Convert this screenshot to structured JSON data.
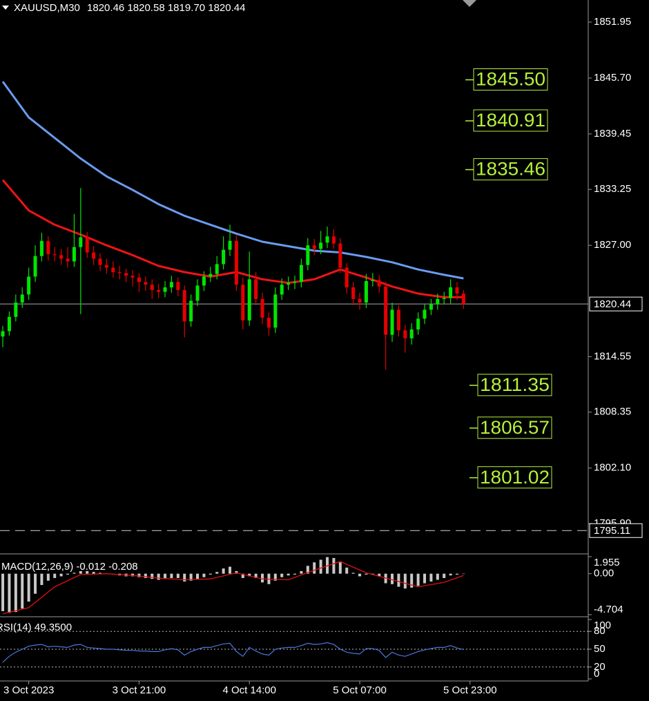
{
  "chart_data": [
    {
      "type": "candlestick",
      "title": "XAUUSD,M30",
      "title_values": [
        "1820.46",
        "1820.58",
        "1819.70",
        "1820.44"
      ],
      "up_color": "#00e600",
      "down_color": "#e60000",
      "open": [
        1816.8,
        1817.4,
        1819.0,
        1820.6,
        1821.5,
        1823.5,
        1825.8,
        1827.5,
        1826.0,
        1825.9,
        1825.5,
        1825.2,
        1826.8,
        1827.9,
        1826.2,
        1825.5,
        1824.8,
        1824.5,
        1824.0,
        1823.9,
        1823.6,
        1823.4,
        1822.9,
        1822.6,
        1822.0,
        1821.8,
        1822.3,
        1822.9,
        1822.0,
        1818.5,
        1820.8,
        1822.5,
        1823.5,
        1823.8,
        1824.9,
        1826.5,
        1827.5,
        1822.6,
        1818.6,
        1823.2,
        1821.0,
        1818.9,
        1817.8,
        1821.5,
        1822.6,
        1822.8,
        1822.9,
        1824.8,
        1827.0,
        1826.6,
        1827.3,
        1828.0,
        1827.2,
        1824.5,
        1822.3,
        1821.0,
        1820.6,
        1823.0,
        1823.1,
        1822.4,
        1817.0,
        1819.8,
        1817.5,
        1816.6,
        1817.6,
        1818.8,
        1819.8,
        1820.4,
        1821.0,
        1821.1,
        1822.3,
        1821.6
      ],
      "high": [
        1818.0,
        1819.6,
        1821.5,
        1822.3,
        1824.5,
        1827.0,
        1828.4,
        1828.0,
        1826.8,
        1826.6,
        1826.8,
        1830.5,
        1833.4,
        1828.5,
        1826.9,
        1826.1,
        1825.5,
        1825.2,
        1824.7,
        1824.4,
        1824.2,
        1823.9,
        1823.5,
        1823.2,
        1822.7,
        1823.0,
        1823.6,
        1823.4,
        1822.5,
        1821.5,
        1823.2,
        1824.1,
        1824.6,
        1825.8,
        1828.0,
        1829.3,
        1828.1,
        1823.4,
        1826.3,
        1824.0,
        1821.7,
        1819.5,
        1822.3,
        1823.3,
        1823.5,
        1823.6,
        1825.5,
        1827.8,
        1827.7,
        1828.6,
        1829.1,
        1828.8,
        1827.8,
        1825.0,
        1822.9,
        1821.7,
        1823.8,
        1823.9,
        1823.7,
        1822.9,
        1820.6,
        1820.3,
        1818.1,
        1818.3,
        1819.5,
        1820.4,
        1821.0,
        1821.6,
        1821.8,
        1823.2,
        1822.9,
        1822.0
      ],
      "low": [
        1815.6,
        1816.9,
        1818.5,
        1820.0,
        1820.9,
        1822.9,
        1825.2,
        1825.3,
        1825.2,
        1824.8,
        1824.5,
        1824.6,
        1819.3,
        1825.6,
        1824.8,
        1824.1,
        1823.8,
        1823.4,
        1823.2,
        1822.9,
        1822.4,
        1821.8,
        1821.9,
        1821.0,
        1821.1,
        1821.2,
        1821.7,
        1821.3,
        1816.7,
        1817.9,
        1820.2,
        1821.9,
        1822.9,
        1823.2,
        1824.3,
        1825.8,
        1821.9,
        1817.6,
        1818.0,
        1820.3,
        1818.2,
        1816.9,
        1817.2,
        1820.9,
        1822.0,
        1822.1,
        1822.3,
        1824.2,
        1825.9,
        1826.0,
        1826.7,
        1826.6,
        1823.9,
        1821.6,
        1820.3,
        1819.8,
        1820.0,
        1822.4,
        1821.7,
        1813.1,
        1816.2,
        1816.8,
        1815.0,
        1815.9,
        1817.0,
        1818.2,
        1819.2,
        1819.8,
        1820.4,
        1820.5,
        1820.9,
        1819.9
      ],
      "close": [
        1817.4,
        1819.0,
        1820.6,
        1821.5,
        1823.5,
        1825.8,
        1827.5,
        1826.0,
        1825.9,
        1825.5,
        1825.2,
        1826.8,
        1827.9,
        1826.2,
        1825.5,
        1824.8,
        1824.5,
        1824.0,
        1823.9,
        1823.6,
        1823.4,
        1822.9,
        1822.6,
        1822.0,
        1821.8,
        1822.3,
        1822.9,
        1822.0,
        1818.5,
        1820.8,
        1822.5,
        1823.5,
        1823.8,
        1824.9,
        1826.5,
        1827.5,
        1822.6,
        1818.6,
        1823.2,
        1821.0,
        1818.9,
        1817.8,
        1821.5,
        1822.6,
        1822.8,
        1822.9,
        1824.8,
        1827.0,
        1826.6,
        1827.3,
        1828.0,
        1827.2,
        1824.5,
        1822.3,
        1821.0,
        1820.6,
        1823.0,
        1823.1,
        1822.4,
        1817.0,
        1819.8,
        1817.5,
        1816.6,
        1817.6,
        1818.8,
        1819.8,
        1820.4,
        1821.0,
        1821.1,
        1822.3,
        1821.6,
        1820.44
      ],
      "moving_averages": [
        {
          "color": "#6a9cf0",
          "x": [
            0,
            4,
            8,
            12,
            16,
            20,
            24,
            28,
            32,
            36,
            40,
            44,
            48,
            52,
            56,
            60,
            64,
            68,
            71
          ],
          "values": [
            1845.3,
            1841.3,
            1839.0,
            1836.7,
            1834.7,
            1833.2,
            1831.6,
            1830.3,
            1829.3,
            1828.3,
            1827.4,
            1826.9,
            1826.4,
            1826.2,
            1825.7,
            1825.1,
            1824.3,
            1823.7,
            1823.3
          ]
        },
        {
          "color": "#f01414",
          "x": [
            0,
            4,
            8,
            12,
            16,
            20,
            24,
            28,
            32,
            36,
            40,
            44,
            48,
            52,
            56,
            60,
            64,
            68,
            71
          ],
          "values": [
            1834.3,
            1830.9,
            1829.3,
            1828.2,
            1827.0,
            1825.9,
            1824.7,
            1824.0,
            1823.5,
            1824.0,
            1823.2,
            1822.8,
            1823.2,
            1824.3,
            1823.4,
            1822.4,
            1821.6,
            1821.2,
            1821.2
          ]
        }
      ],
      "xlim": [
        -0.43,
        90
      ],
      "ylim": [
        1792.66,
        1854.42
      ],
      "xticks": [
        {
          "value": 4,
          "label": "3 Oct 2023"
        },
        {
          "value": 21,
          "label": "3 Oct 21:00"
        },
        {
          "value": 38,
          "label": "4 Oct 14:00"
        },
        {
          "value": 55,
          "label": "5 Oct 07:00"
        },
        {
          "value": 72,
          "label": "5 Oct 23:00"
        }
      ],
      "yticks": [
        1851.95,
        {
          "value": 1845.7,
          "label": "1845.70"
        },
        1839.45,
        1833.25,
        {
          "value": 1827,
          "label": "1827.00"
        },
        1814.55,
        1808.35,
        {
          "value": 1802.1,
          "label": "1802.10"
        },
        {
          "value": 1795.9,
          "label": "1795.90"
        }
      ],
      "current_price": 1820.44,
      "dashed_level": 1795.11,
      "levels": [
        {
          "value": 1845.5,
          "label": "1845.50"
        },
        1840.91,
        1835.46,
        1811.35,
        1806.57,
        1801.02
      ],
      "level_color": "#b5f23a"
    },
    {
      "type": "macd",
      "title": "MACD(12,26,9)",
      "main": -0.012,
      "signal": -0.208,
      "histogram_color": "#c8c8c8",
      "signal_color": "#e01010",
      "histogram": [
        -4.3,
        -4.5,
        -4.4,
        -4.0,
        -3.2,
        -2.3,
        -1.3,
        -0.8,
        -0.5,
        -0.3,
        -0.1,
        0.1,
        0.3,
        0.3,
        0.2,
        0.1,
        0.0,
        -0.1,
        -0.2,
        -0.3,
        -0.3,
        -0.4,
        -0.5,
        -0.6,
        -0.7,
        -0.6,
        -0.5,
        -0.5,
        -0.9,
        -0.8,
        -0.6,
        -0.4,
        -0.1,
        0.2,
        0.6,
        0.8,
        0.3,
        -0.5,
        -0.3,
        -0.5,
        -1.0,
        -1.2,
        -0.8,
        -0.4,
        -0.2,
        -0.1,
        0.3,
        0.9,
        1.3,
        1.6,
        1.9,
        1.8,
        1.3,
        0.7,
        0.1,
        -0.3,
        -0.1,
        -0.1,
        -0.3,
        -1.1,
        -1.2,
        -1.5,
        -1.7,
        -1.6,
        -1.4,
        -1.1,
        -0.9,
        -0.7,
        -0.5,
        -0.2,
        -0.1,
        -0.012
      ],
      "signal_line": {
        "x": [
          0,
          4,
          8,
          12,
          16,
          20,
          24,
          28,
          32,
          36,
          40,
          44,
          48,
          52,
          56,
          60,
          64,
          68,
          71
        ],
        "values": [
          -4.6,
          -3.9,
          -1.5,
          -0.1,
          0.0,
          -0.2,
          -0.5,
          -0.7,
          -0.6,
          0.1,
          -0.6,
          -0.7,
          0.4,
          1.4,
          0.1,
          -0.7,
          -1.5,
          -1.0,
          -0.208
        ]
      },
      "ylim": [
        -4.704,
        1.955
      ],
      "yticks": [
        1.955,
        {
          "value": 0,
          "label": "0.00"
        },
        -4.704
      ]
    },
    {
      "type": "rsi",
      "title": "RSI(14)",
      "value_label": "49.3500",
      "color": "#4a78e0",
      "values": [
        28,
        38,
        45,
        50,
        55,
        57,
        58,
        54,
        55,
        54,
        53,
        57,
        58,
        53,
        52,
        51,
        50,
        50,
        49,
        48,
        48,
        47,
        47,
        46,
        46,
        49,
        51,
        49,
        40,
        46,
        50,
        53,
        53,
        56,
        59,
        60,
        46,
        38,
        53,
        47,
        42,
        40,
        50,
        52,
        53,
        53,
        56,
        60,
        58,
        59,
        61,
        58,
        50,
        45,
        43,
        42,
        51,
        51,
        48,
        36,
        45,
        40,
        38,
        42,
        46,
        49,
        51,
        53,
        53,
        56,
        52,
        49.35
      ],
      "ylim": [
        0,
        100
      ],
      "yticks": [
        100,
        80,
        50,
        20,
        0
      ],
      "levels": [
        80,
        50,
        20
      ]
    }
  ]
}
